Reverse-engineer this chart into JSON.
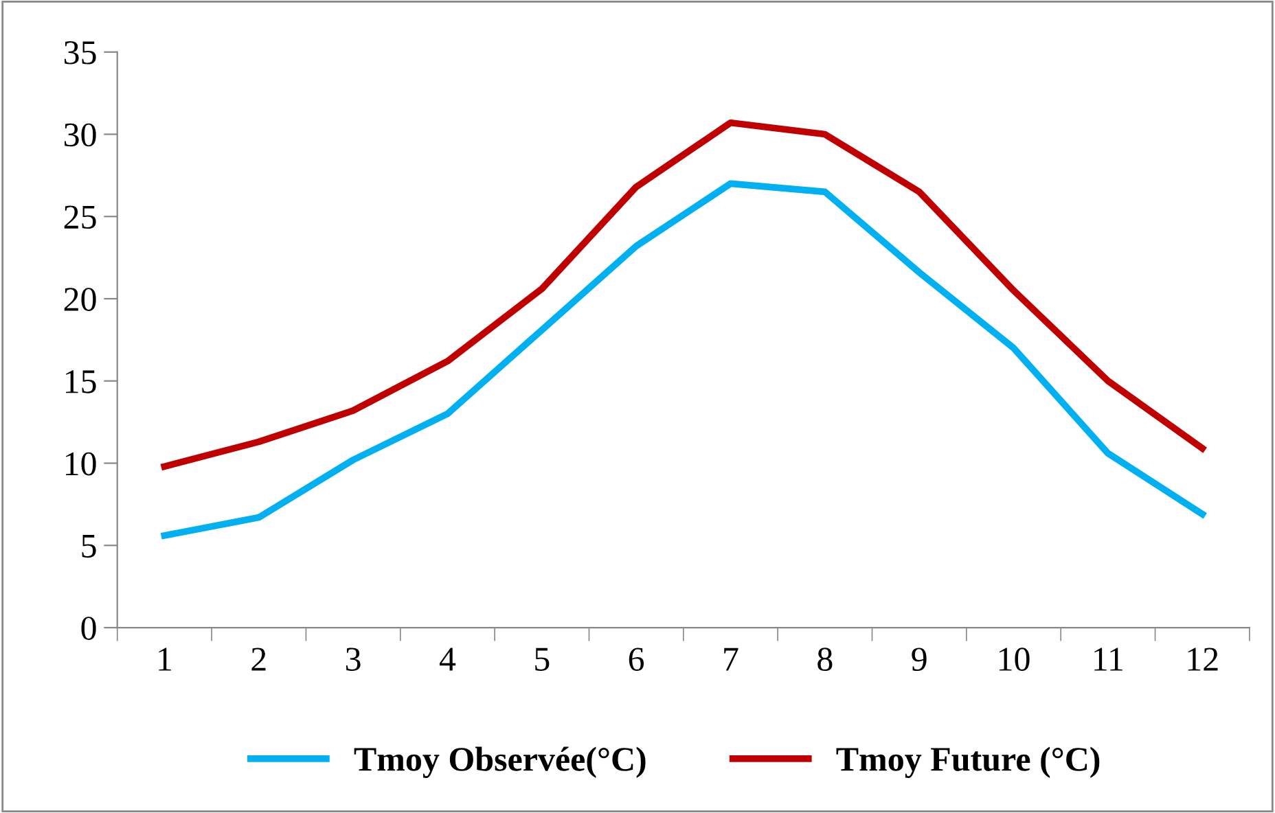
{
  "chart_data": {
    "type": "line",
    "categories": [
      "1",
      "2",
      "3",
      "4",
      "5",
      "6",
      "7",
      "8",
      "9",
      "10",
      "11",
      "12"
    ],
    "series": [
      {
        "name": "Tmoy Observée(°C)",
        "color": "#00b0f0",
        "values": [
          5.6,
          6.7,
          10.2,
          13.0,
          18.1,
          23.2,
          27.0,
          26.5,
          21.6,
          17.0,
          10.6,
          6.9
        ]
      },
      {
        "name": "Tmoy Future (°C)",
        "color": "#c00000",
        "values": [
          9.8,
          11.3,
          13.2,
          16.2,
          20.6,
          26.8,
          30.7,
          30.0,
          26.5,
          20.5,
          15.0,
          10.9
        ]
      }
    ],
    "ylim": [
      0,
      35
    ],
    "yticks": [
      0,
      5,
      10,
      15,
      20,
      25,
      30,
      35
    ],
    "grid": false,
    "legend": "bottom",
    "marker": "none",
    "line_style": "solid"
  }
}
